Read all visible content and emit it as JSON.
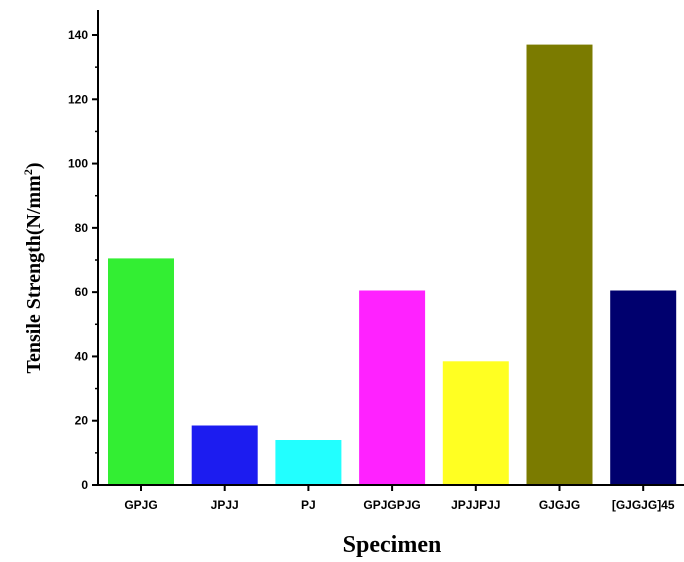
{
  "chart_data": {
    "type": "bar",
    "title": "",
    "xlabel": "Specimen",
    "ylabel": "Tensile Strength(N/mm",
    "ylabel_superscript": "2",
    "ylabel_suffix": ")",
    "categories": [
      "GPJG",
      "JPJJ",
      "PJ",
      "GPJGPJG",
      "JPJJPJJ",
      "GJGJG",
      "[GJGJG]45"
    ],
    "values": [
      70.5,
      18.5,
      14,
      60.5,
      38.5,
      137,
      60.5
    ],
    "colors": [
      "#33ee33",
      "#1c1cf0",
      "#22ffff",
      "#ff22ff",
      "#ffff22",
      "#7b7b00",
      "#00006e"
    ],
    "ylim": [
      0,
      150
    ],
    "yticks": [
      0,
      20,
      40,
      60,
      80,
      100,
      120,
      140
    ],
    "grid": false,
    "legend": "none"
  }
}
